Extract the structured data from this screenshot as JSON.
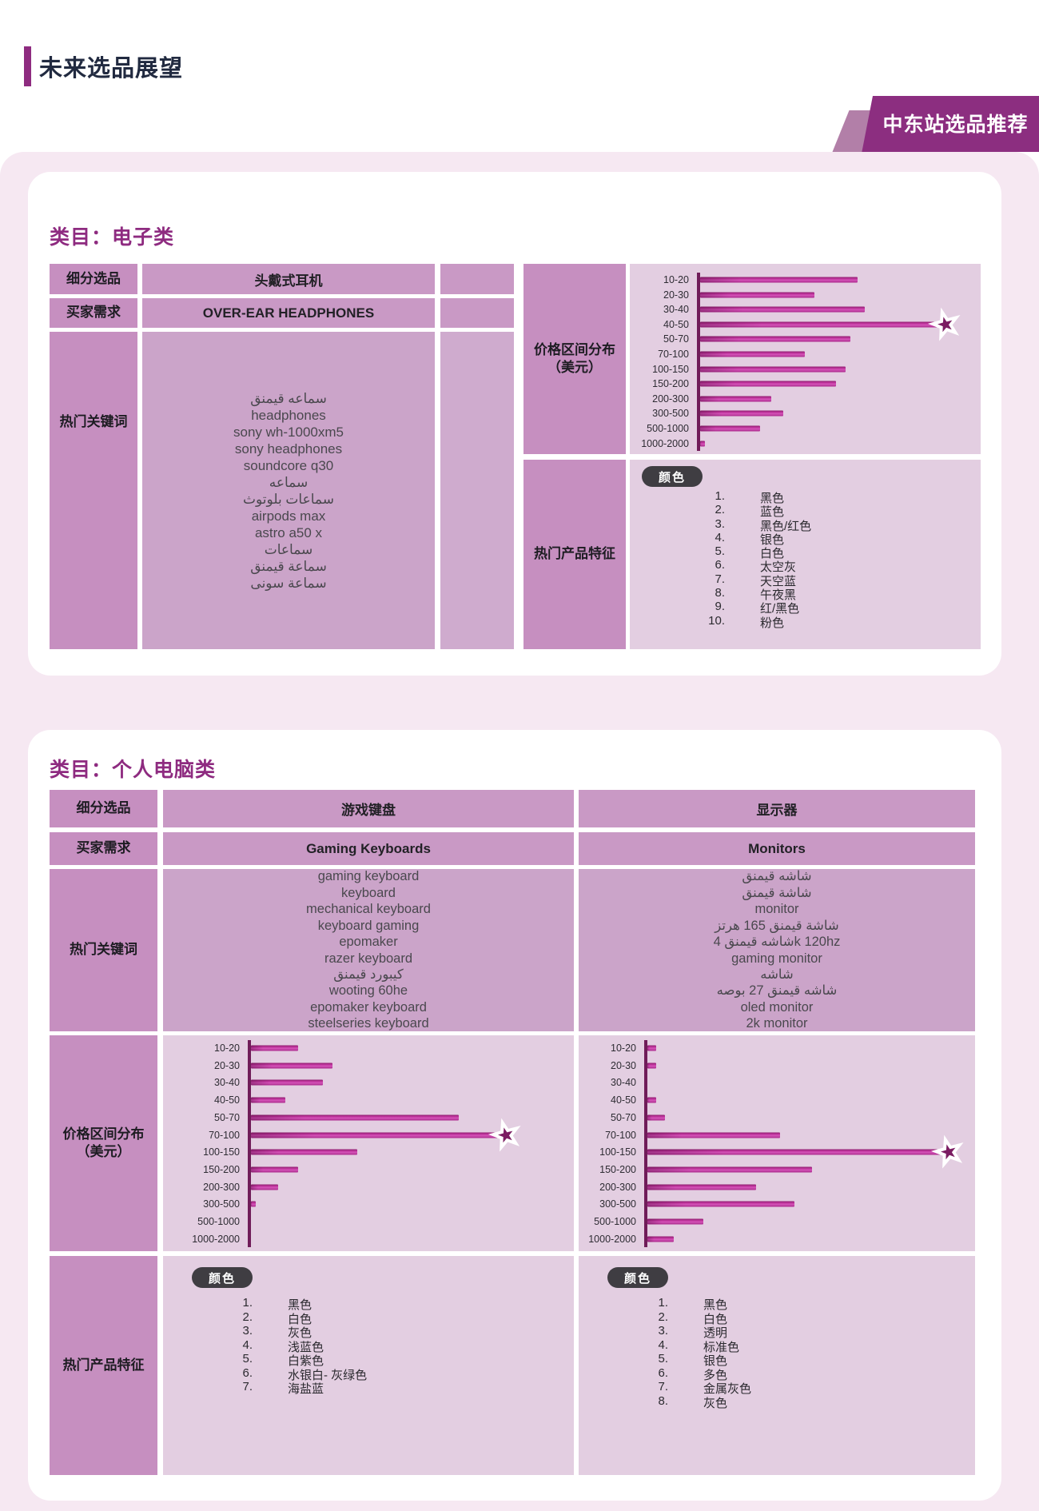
{
  "page": {
    "header_title": "未来选品展望",
    "ribbon_label": "中东站选品推荐"
  },
  "row_labels": {
    "product": "细分选品",
    "demand": "买家需求",
    "keywords": "热门关键词",
    "price_line1": "价格区间分布",
    "price_line2": "（美元）",
    "features": "热门产品特征",
    "color_pill": "颜色"
  },
  "sections": [
    {
      "title": "类目：电子类",
      "products": [
        {
          "name": "头戴式耳机",
          "demand": "OVER-EAR HEADPHONES",
          "keywords": [
            "سماعه قيمنق",
            "headphones",
            "sony wh-1000xm5",
            "sony headphones",
            "soundcore q30",
            "سماعه",
            "سماعات بلوتوث",
            "airpods max",
            "astro a50 x",
            "سماعات",
            "سماعة قيمنق",
            "سماعة سونى"
          ],
          "colors": [
            "黑色",
            "蓝色",
            "黑色/红色",
            "银色",
            "白色",
            "太空灰",
            "天空蓝",
            "午夜黑",
            "红/黑色",
            "粉色"
          ],
          "chart_index": 0
        }
      ]
    },
    {
      "title": "类目：个人电脑类",
      "products": [
        {
          "name": "游戏键盘",
          "demand": "Gaming Keyboards",
          "keywords": [
            "gaming keyboard",
            "keyboard",
            "mechanical keyboard",
            "keyboard gaming",
            "epomaker",
            "razer keyboard",
            "كيبورد قيمنق",
            "wooting 60he",
            "epomaker keyboard",
            "steelseries keyboard"
          ],
          "colors": [
            "黑色",
            "白色",
            "灰色",
            "浅蓝色",
            "白紫色",
            "水银白- 灰绿色",
            "海盐蓝"
          ],
          "chart_index": 1
        },
        {
          "name": "显示器",
          "demand": "Monitors",
          "keywords": [
            "شاشه قيمنق",
            "شاشة قيمنق",
            "monitor",
            "شاشة قيمنق 165 هرتز",
            "شاشه قيمنق 4k 120hz",
            "gaming monitor",
            "شاشه",
            "شاشه قيمنق 27 بوصه",
            "oled monitor",
            "2k monitor"
          ],
          "colors": [
            "黑色",
            "白色",
            "透明",
            "标准色",
            "银色",
            "多色",
            "金属灰色",
            "灰色"
          ],
          "chart_index": 2
        }
      ]
    }
  ],
  "chart_data": [
    {
      "type": "bar",
      "orientation": "horizontal",
      "title": "价格区间分布（美元）— 头戴式耳机",
      "categories": [
        "10-20",
        "20-30",
        "30-40",
        "40-50",
        "50-70",
        "70-100",
        "100-150",
        "150-200",
        "200-300",
        "300-500",
        "500-1000",
        "1000-2000"
      ],
      "values": [
        66,
        48,
        69,
        100,
        63,
        44,
        61,
        57,
        30,
        35,
        25,
        2
      ],
      "star_index": 3,
      "unit": "relative popularity (max=100)",
      "grid": false,
      "legend": false
    },
    {
      "type": "bar",
      "orientation": "horizontal",
      "title": "价格区间分布（美元）— 游戏键盘",
      "categories": [
        "10-20",
        "20-30",
        "30-40",
        "40-50",
        "50-70",
        "70-100",
        "100-150",
        "150-200",
        "200-300",
        "300-500",
        "500-1000",
        "1000-2000"
      ],
      "values": [
        19,
        33,
        29,
        14,
        84,
        100,
        43,
        19,
        11,
        2,
        0,
        0
      ],
      "star_index": 5,
      "unit": "relative popularity (max=100)",
      "grid": false,
      "legend": false
    },
    {
      "type": "bar",
      "orientation": "horizontal",
      "title": "价格区间分布（美元）— 显示器",
      "categories": [
        "10-20",
        "20-30",
        "30-40",
        "40-50",
        "50-70",
        "70-100",
        "100-150",
        "150-200",
        "200-300",
        "300-500",
        "500-1000",
        "1000-2000"
      ],
      "values": [
        3,
        3,
        0,
        3,
        6,
        45,
        100,
        56,
        37,
        50,
        19,
        9
      ],
      "star_index": 6,
      "unit": "relative popularity (max=100)",
      "grid": false,
      "legend": false
    }
  ],
  "colors": {
    "accent_purple": "#8e2b80",
    "ribbon_purple": "#8c2e80",
    "bar_gradient_dark": "#8f1c6e",
    "bar_gradient_bright": "#d355b8",
    "axis": "#701c59",
    "star_inner": "#7b1c62",
    "pill_bg": "#3f3d42",
    "page_bg": "#f6e8f2"
  }
}
